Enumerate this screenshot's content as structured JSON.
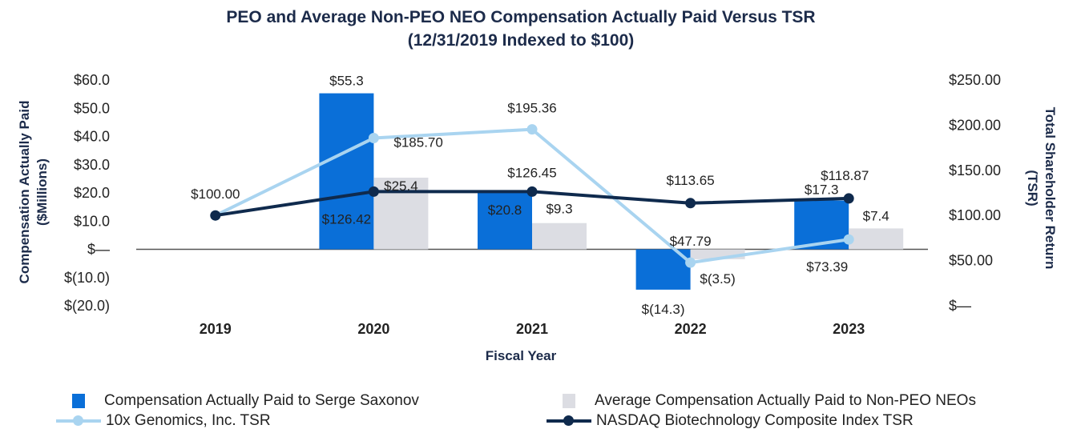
{
  "chart_data": {
    "type": "bar",
    "title": "PEO and Average Non-PEO NEO Compensation Actually Paid Versus TSR",
    "subtitle": "(12/31/2019 Indexed to $100)",
    "xlabel": "Fiscal Year",
    "ylabel_left_line1": "Compensation Actually Paid",
    "ylabel_left_line2": "($Millions)",
    "ylabel_right_line1": "Total Shareholder Return",
    "ylabel_right_line2": "(TSR)",
    "categories": [
      "2019",
      "2020",
      "2021",
      "2022",
      "2023"
    ],
    "ylim_left": [
      -20,
      60
    ],
    "left_ticks": [
      {
        "value": 60,
        "label": "$60.0"
      },
      {
        "value": 50,
        "label": "$50.0"
      },
      {
        "value": 40,
        "label": "$40.0"
      },
      {
        "value": 30,
        "label": "$30.0"
      },
      {
        "value": 20,
        "label": "$20.0"
      },
      {
        "value": 10,
        "label": "$10.0"
      },
      {
        "value": 0,
        "label": "$—"
      },
      {
        "value": -10,
        "label": "$(10.0)"
      },
      {
        "value": -20,
        "label": "$(20.0)"
      }
    ],
    "ylim_right": [
      0,
      250
    ],
    "right_ticks": [
      {
        "value": 250,
        "label": "$250.00"
      },
      {
        "value": 200,
        "label": "$200.00"
      },
      {
        "value": 150,
        "label": "$150.00"
      },
      {
        "value": 100,
        "label": "$100.00"
      },
      {
        "value": 50,
        "label": "$50.00"
      },
      {
        "value": 0,
        "label": "$—"
      }
    ],
    "series": [
      {
        "name": "Compensation Actually Paid to Serge Saxonov",
        "kind": "bar",
        "axis": "left",
        "color": "#0a6fd8",
        "values": [
          null,
          55.3,
          20.8,
          -14.3,
          17.3
        ],
        "labels": [
          "",
          "$55.3",
          "$20.8",
          "$(14.3)",
          "$17.3"
        ]
      },
      {
        "name": "Average Compensation Actually Paid to Non-PEO NEOs",
        "kind": "bar",
        "axis": "left",
        "color": "#dcdde3",
        "values": [
          null,
          25.4,
          9.3,
          -3.5,
          7.4
        ],
        "labels": [
          "",
          "$25.4",
          "$9.3",
          "$(3.5)",
          "$7.4"
        ]
      },
      {
        "name": "10x Genomics, Inc. TSR",
        "kind": "line",
        "axis": "right",
        "color": "#a9d4f0",
        "values": [
          100.0,
          185.7,
          195.36,
          47.79,
          73.39
        ],
        "labels": [
          "$100.00",
          "$185.70",
          "$195.36",
          "$47.79",
          "$73.39"
        ]
      },
      {
        "name": "NASDAQ Biotechnology Composite Index TSR",
        "kind": "line",
        "axis": "right",
        "color": "#0f2a4d",
        "values": [
          100.0,
          126.42,
          126.45,
          113.65,
          118.87
        ],
        "labels": [
          "",
          "$126.42",
          "$126.45",
          "$113.65",
          "$118.87"
        ]
      }
    ],
    "legend_position": "bottom"
  }
}
